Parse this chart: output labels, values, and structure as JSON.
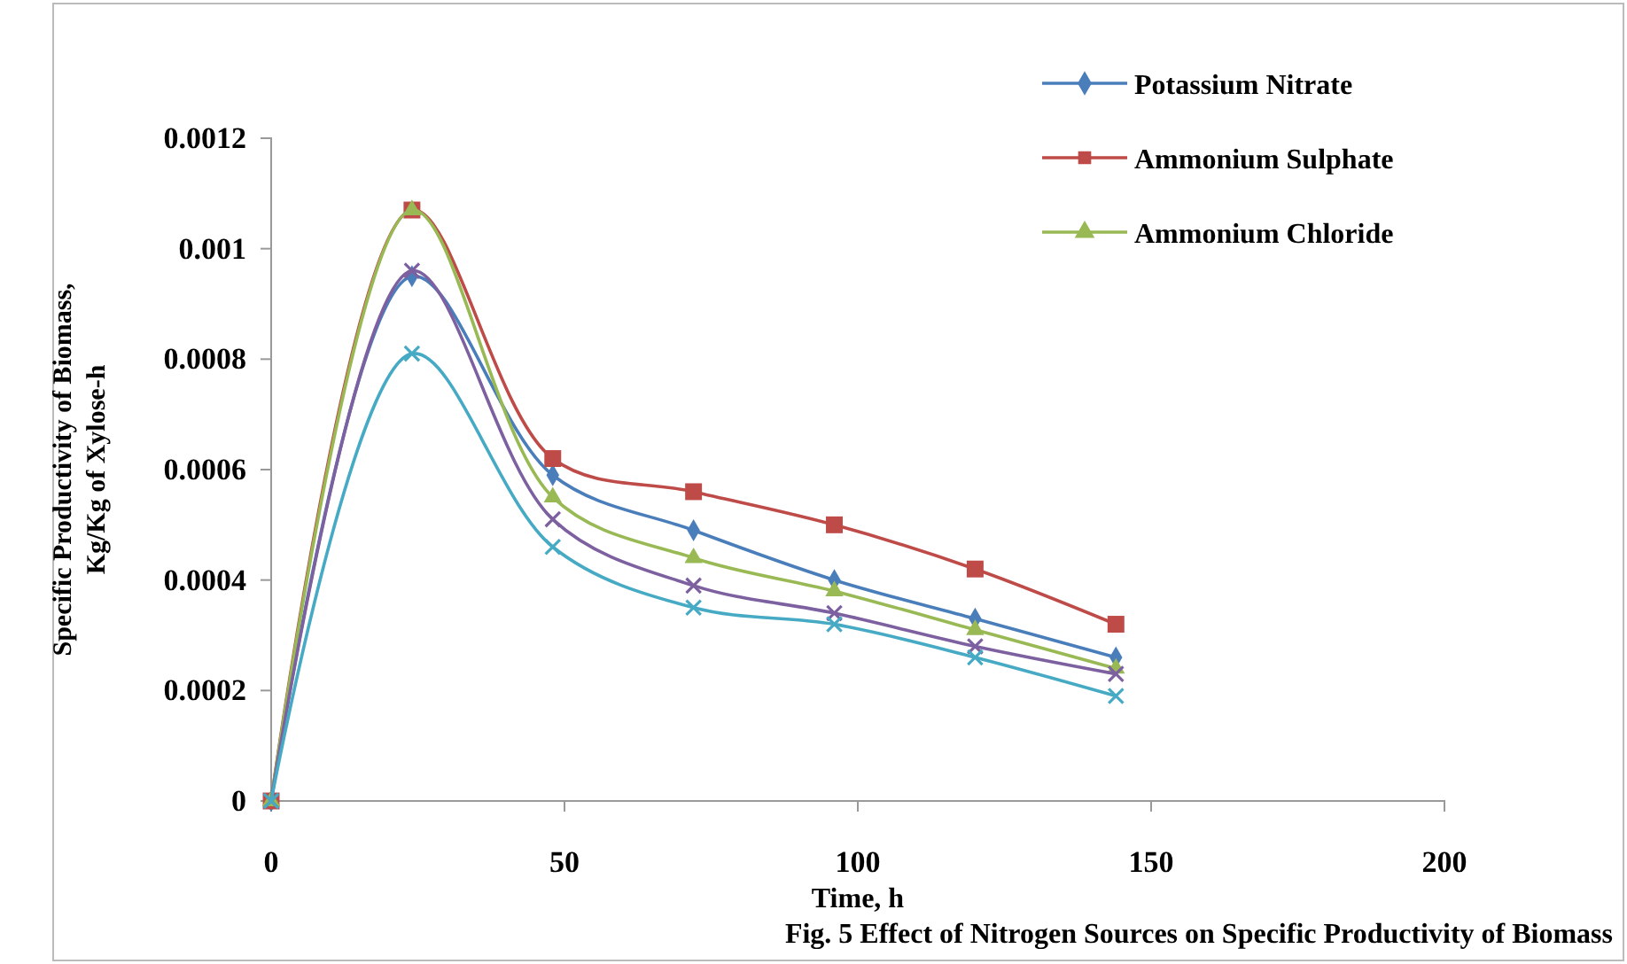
{
  "chart_data": {
    "type": "line",
    "xlabel": "Time, h",
    "ylabel": "Specific Productivity of Biomass,\nKg/Kg of Xylose-h",
    "annotations": [
      "Fig. 5 Effect of Nitrogen Sources on Specific Productivity of Biomass"
    ],
    "x": [
      0,
      24,
      48,
      72,
      96,
      120,
      144
    ],
    "series": [
      {
        "name": "Potassium Nitrate",
        "color": "#4a7ebb",
        "marker": "diamond",
        "values": [
          0,
          0.00095,
          0.00059,
          0.00049,
          0.0004,
          0.00033,
          0.00026
        ]
      },
      {
        "name": "Ammonium Sulphate",
        "color": "#be4b48",
        "marker": "square",
        "values": [
          0,
          0.00107,
          0.00062,
          0.00056,
          0.0005,
          0.00042,
          0.00032
        ]
      },
      {
        "name": "Ammonium Chloride",
        "color": "#98b954",
        "marker": "triangle",
        "values": [
          0,
          0.00107,
          0.00055,
          0.00044,
          0.00038,
          0.00031,
          0.00024
        ]
      },
      {
        "color": "#7d60a0",
        "marker": "cross",
        "values": [
          0,
          0.00096,
          0.00051,
          0.00039,
          0.00034,
          0.00028,
          0.00023
        ]
      },
      {
        "color": "#46aac5",
        "marker": "cross",
        "values": [
          0,
          0.00081,
          0.00046,
          0.00035,
          0.00032,
          0.00026,
          0.00019
        ]
      }
    ],
    "xlim": [
      0,
      200
    ],
    "xticks": [
      0,
      50,
      100,
      150,
      200
    ],
    "ylim": [
      0,
      0.0012
    ],
    "yticks": [
      0,
      0.0002,
      0.0004,
      0.0006,
      0.0008,
      0.001,
      0.0012
    ],
    "grid": false,
    "legend": "top right"
  }
}
